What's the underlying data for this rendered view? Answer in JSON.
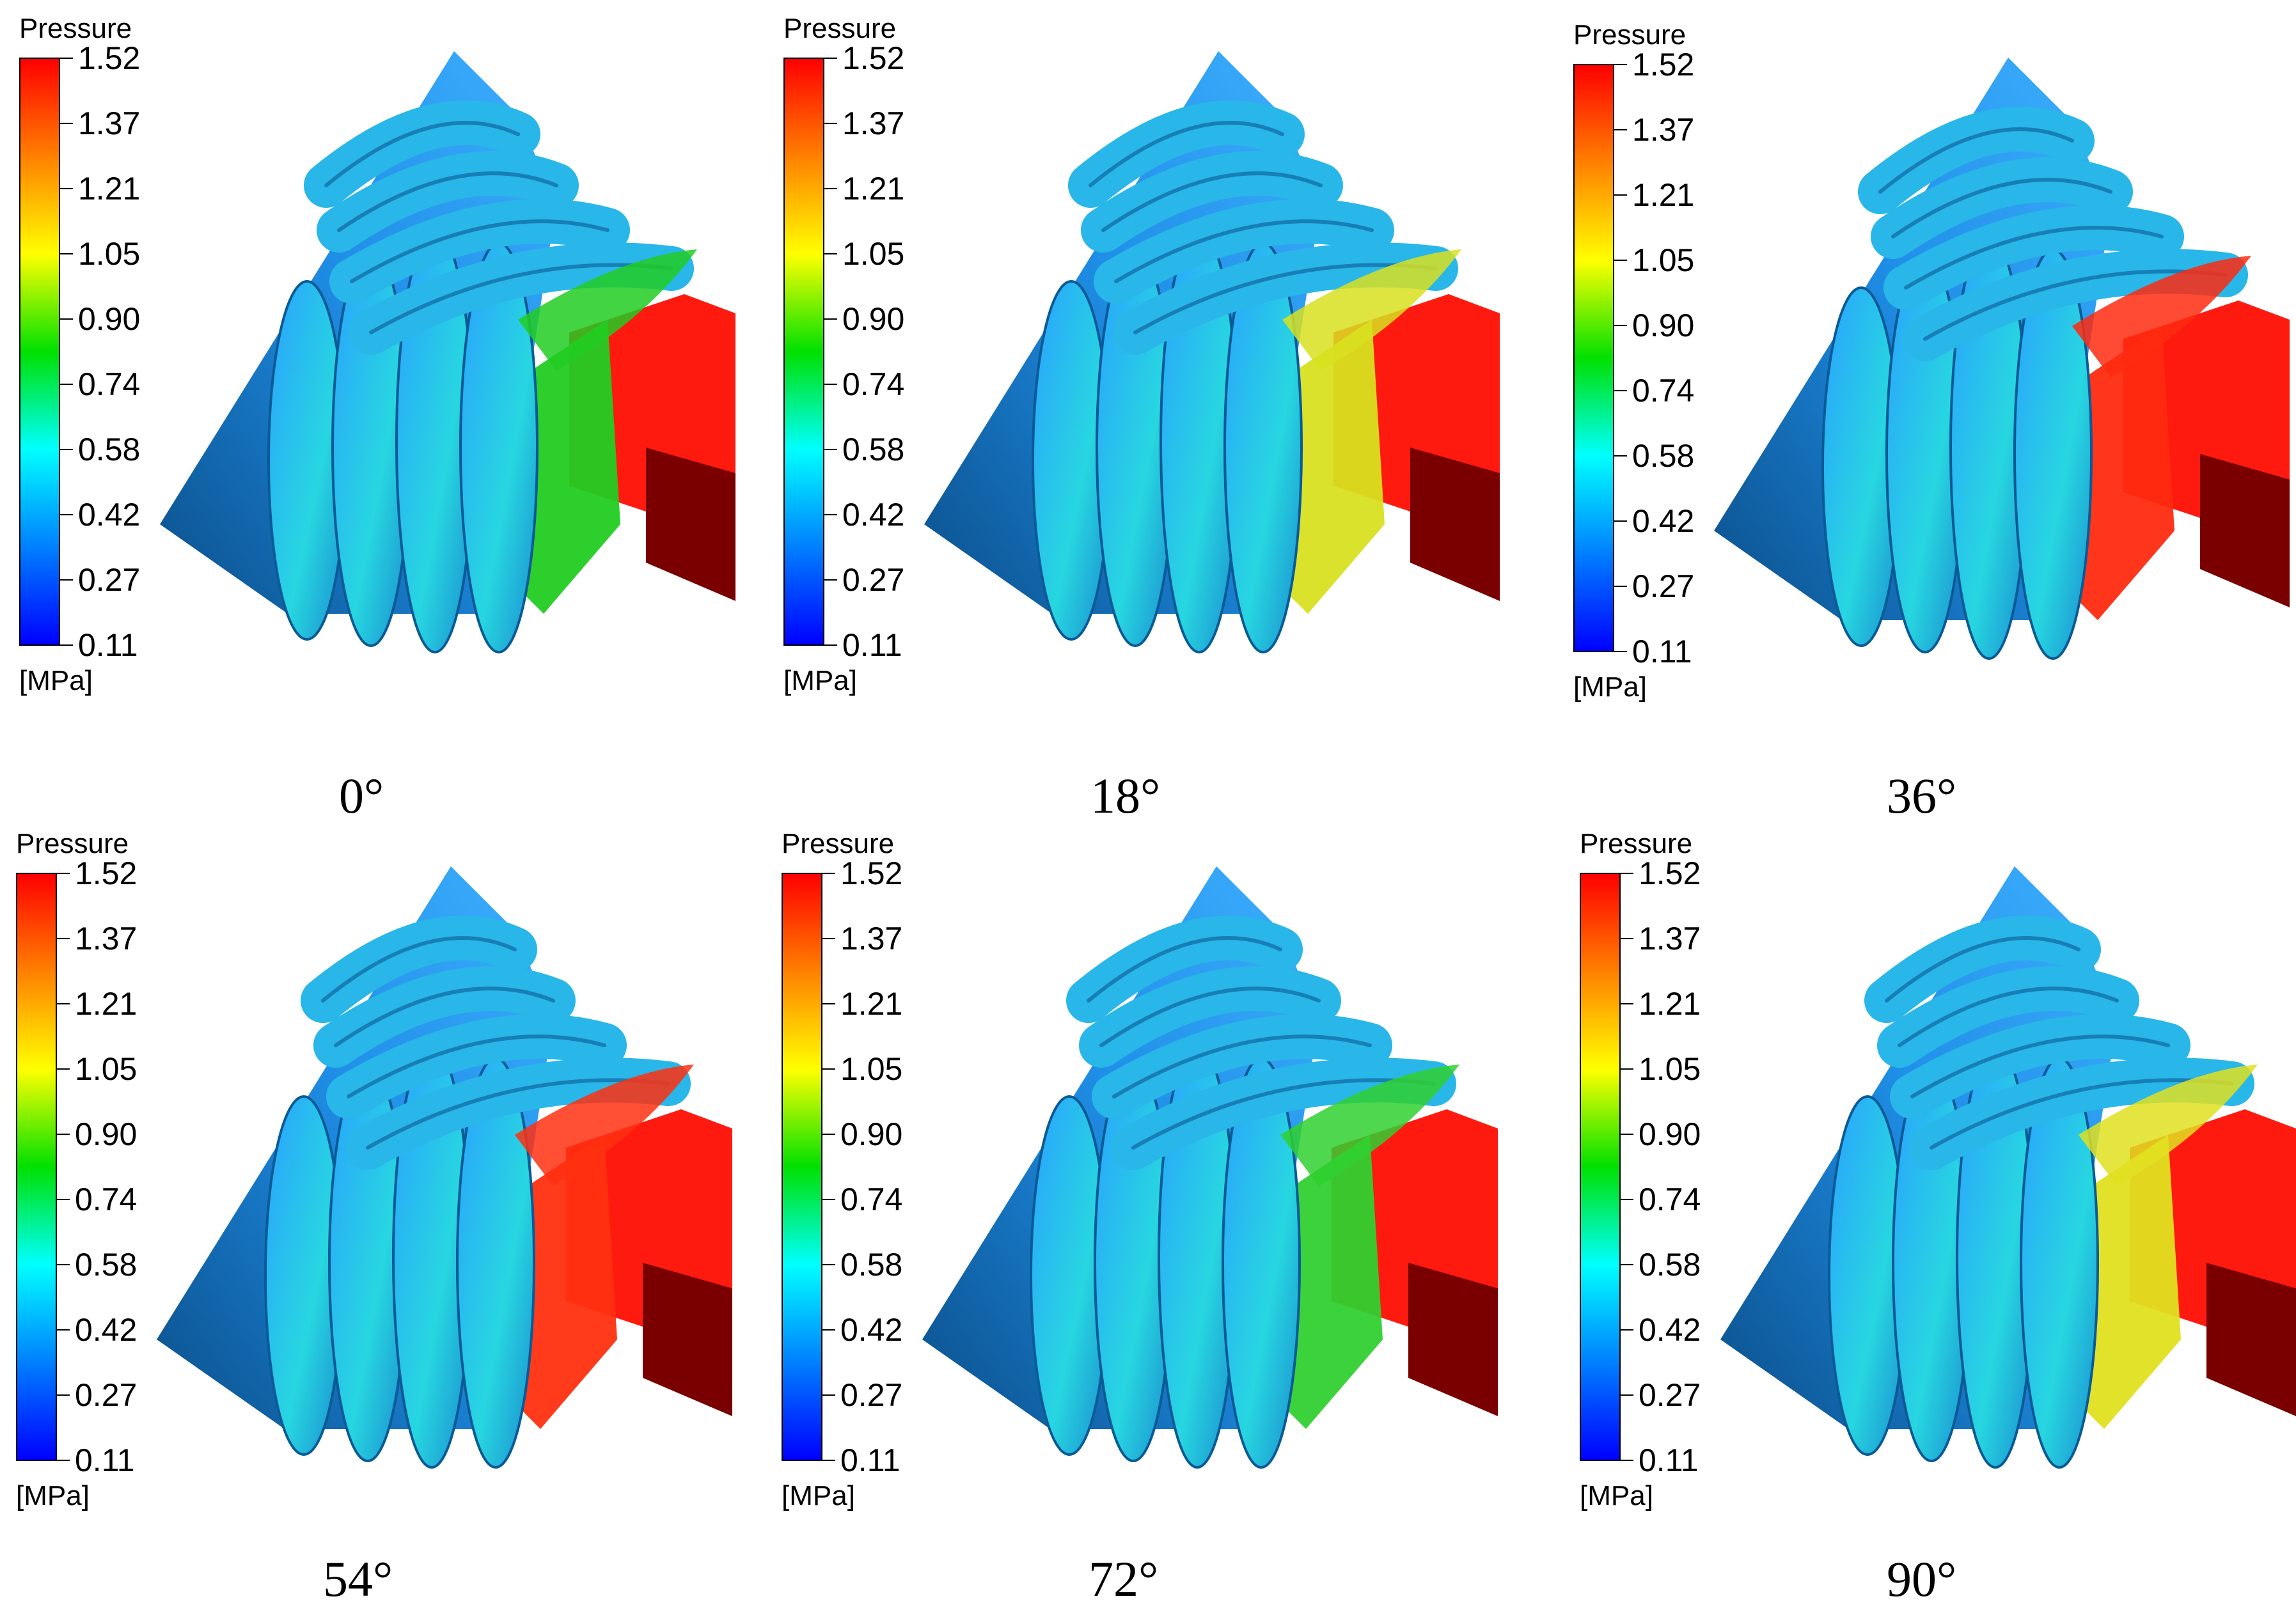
{
  "colors": {
    "scale_stops": [
      "#ff0000",
      "#ff8000",
      "#ffff00",
      "#00e000",
      "#00ffff",
      "#0080ff",
      "#0000ff"
    ],
    "housing": "#1f8fe8",
    "housing_dark": "#0b4f8a",
    "outlet": "#ff1a10",
    "outlet_dark": "#7a0000"
  },
  "legend": {
    "title": "Pressure",
    "unit": "[MPa]",
    "ticks": [
      "1.52",
      "1.37",
      "1.21",
      "1.05",
      "0.90",
      "0.74",
      "0.58",
      "0.42",
      "0.27",
      "0.11"
    ]
  },
  "panels": [
    {
      "angle_label": "0°",
      "contact_zone": "green",
      "contact_color": "#22cc22"
    },
    {
      "angle_label": "18°",
      "contact_zone": "yellow",
      "contact_color": "#d8e020"
    },
    {
      "angle_label": "36°",
      "contact_zone": "red",
      "contact_color": "#ff2a10"
    },
    {
      "angle_label": "54°",
      "contact_zone": "red",
      "contact_color": "#ff3010"
    },
    {
      "angle_label": "72°",
      "contact_zone": "green",
      "contact_color": "#30d030"
    },
    {
      "angle_label": "90°",
      "contact_zone": "yellow",
      "contact_color": "#e0e020"
    }
  ]
}
